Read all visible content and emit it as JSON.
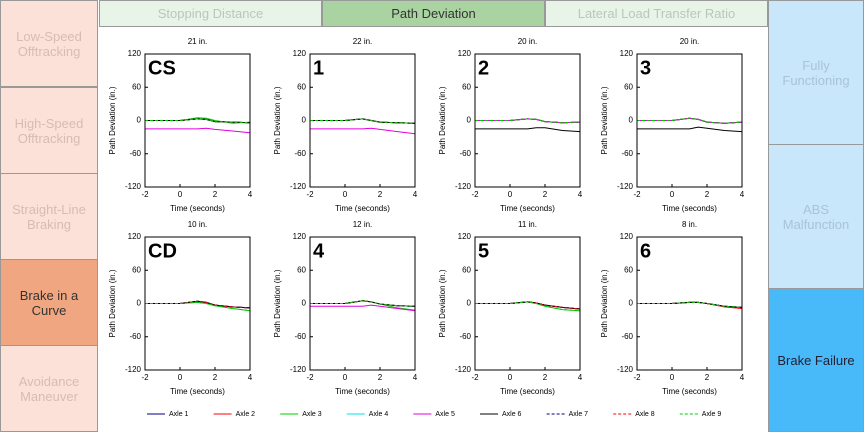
{
  "left_menu": [
    "Low-Speed Offtracking",
    "High-Speed Offtracking",
    "Straight-Line Braking",
    "Brake in a Curve",
    "Avoidance Maneuver"
  ],
  "tabs": [
    "Stopping Distance",
    "Path Deviation",
    "Lateral Load Transfer Ratio"
  ],
  "right_menu": [
    "Fully Functioning",
    "ABS Malfunction",
    "Brake Failure"
  ],
  "legend": [
    {
      "name": "Axle 1",
      "color": "#000080",
      "dash": false
    },
    {
      "name": "Axle 2",
      "color": "#ff0000",
      "dash": false
    },
    {
      "name": "Axle 3",
      "color": "#00cc00",
      "dash": false
    },
    {
      "name": "Axle 4",
      "color": "#00e0e0",
      "dash": false
    },
    {
      "name": "Axle 5",
      "color": "#e000e0",
      "dash": false
    },
    {
      "name": "Axle 6",
      "color": "#000000",
      "dash": false
    },
    {
      "name": "Axle 7",
      "color": "#000080",
      "dash": true
    },
    {
      "name": "Axle 8",
      "color": "#ff0000",
      "dash": true
    },
    {
      "name": "Axle 9",
      "color": "#00cc00",
      "dash": true
    }
  ],
  "chart_data": [
    {
      "type": "line",
      "title": "21 in.",
      "label": "CS",
      "x_label": "Time (seconds)",
      "y_label": "Path Deviation (in.)",
      "xlim": [
        -2,
        4
      ],
      "ylim": [
        -120,
        120
      ],
      "xticks": [
        -2,
        0,
        2,
        4
      ],
      "yticks": [
        -120,
        -60,
        0,
        60,
        120
      ],
      "x": [
        -2,
        0,
        1,
        1.5,
        2,
        3,
        4
      ],
      "series": [
        {
          "values": [
            0,
            0,
            3,
            2,
            -2,
            -3,
            -4
          ]
        },
        {
          "values": [
            0,
            0,
            3,
            2,
            -2,
            -3,
            -4
          ]
        },
        {
          "values": [
            0,
            0,
            5,
            4,
            0,
            -5,
            -3
          ]
        },
        {
          "values": [
            0,
            0,
            3,
            2,
            -2,
            -3,
            -4
          ]
        },
        {
          "values": [
            -15,
            -15,
            -15,
            -14,
            -16,
            -19,
            -22
          ]
        },
        {
          "values": [
            0,
            0,
            3,
            2,
            -2,
            -3,
            -4
          ]
        },
        {
          "values": [
            0,
            0,
            3,
            2,
            -2,
            -3,
            -4
          ]
        },
        {
          "values": [
            0,
            0,
            3,
            2,
            -2,
            -3,
            -4
          ]
        },
        {
          "values": [
            0,
            0,
            3,
            2,
            -2,
            -3,
            -4
          ]
        }
      ]
    },
    {
      "type": "line",
      "title": "22 in.",
      "label": "1",
      "x_label": "Time (seconds)",
      "y_label": "Path Deviation (in.)",
      "xlim": [
        -2,
        4
      ],
      "ylim": [
        -120,
        120
      ],
      "xticks": [
        -2,
        0,
        2,
        4
      ],
      "yticks": [
        -120,
        -60,
        0,
        60,
        120
      ],
      "x": [
        -2,
        0,
        1,
        1.5,
        2,
        3,
        4
      ],
      "series": [
        {
          "values": [
            0,
            0,
            3,
            0,
            -3,
            -4,
            -5
          ]
        },
        {
          "values": [
            0,
            0,
            3,
            0,
            -3,
            -4,
            -5
          ]
        },
        {
          "values": [
            0,
            0,
            3,
            0,
            -3,
            -4,
            -5
          ]
        },
        {
          "values": [
            0,
            0,
            3,
            0,
            -3,
            -4,
            -5
          ]
        },
        {
          "values": [
            -15,
            -15,
            -15,
            -14,
            -16,
            -20,
            -24
          ]
        },
        {
          "values": [
            0,
            0,
            3,
            0,
            -3,
            -4,
            -5
          ]
        },
        {
          "values": [
            0,
            0,
            3,
            0,
            -3,
            -4,
            -5
          ]
        },
        {
          "values": [
            0,
            0,
            3,
            0,
            -3,
            -4,
            -5
          ]
        },
        {
          "values": [
            0,
            0,
            3,
            0,
            -3,
            -4,
            -5
          ]
        }
      ]
    },
    {
      "type": "line",
      "title": "20 in.",
      "label": "2",
      "x_label": "Time (seconds)",
      "y_label": "Path Deviation (in.)",
      "xlim": [
        -2,
        4
      ],
      "ylim": [
        -120,
        120
      ],
      "xticks": [
        -2,
        0,
        2,
        4
      ],
      "yticks": [
        -120,
        -60,
        0,
        60,
        120
      ],
      "x": [
        -2,
        0,
        1,
        1.5,
        2,
        3,
        4
      ],
      "series": [
        {
          "values": [
            0,
            0,
            3,
            2,
            -2,
            -4,
            -3
          ]
        },
        {
          "values": [
            0,
            0,
            3,
            2,
            -2,
            -4,
            -3
          ]
        },
        {
          "values": [
            0,
            0,
            3,
            2,
            -2,
            -4,
            -3
          ]
        },
        {
          "values": [
            0,
            0,
            3,
            2,
            -2,
            -4,
            -3
          ]
        },
        {
          "values": [
            0,
            0,
            3,
            2,
            -2,
            -4,
            -3
          ]
        },
        {
          "values": [
            -15,
            -15,
            -15,
            -13,
            -13,
            -18,
            -20
          ]
        },
        {
          "values": [
            0,
            0,
            3,
            2,
            -2,
            -4,
            -3
          ]
        },
        {
          "values": [
            0,
            0,
            3,
            2,
            -2,
            -4,
            -3
          ]
        },
        {
          "values": [
            0,
            0,
            3,
            2,
            -2,
            -4,
            -3
          ]
        }
      ]
    },
    {
      "type": "line",
      "title": "20 in.",
      "label": "3",
      "x_label": "Time (seconds)",
      "y_label": "Path Deviation (in.)",
      "xlim": [
        -2,
        4
      ],
      "ylim": [
        -120,
        120
      ],
      "xticks": [
        -2,
        0,
        2,
        4
      ],
      "yticks": [
        -120,
        -60,
        0,
        60,
        120
      ],
      "x": [
        -2,
        0,
        1,
        1.5,
        2,
        3,
        4
      ],
      "series": [
        {
          "values": [
            0,
            0,
            4,
            2,
            -3,
            -5,
            -3
          ]
        },
        {
          "values": [
            0,
            0,
            4,
            2,
            -3,
            -5,
            -3
          ]
        },
        {
          "values": [
            0,
            0,
            4,
            2,
            -3,
            -5,
            -3
          ]
        },
        {
          "values": [
            0,
            0,
            4,
            2,
            -3,
            -5,
            -3
          ]
        },
        {
          "values": [
            0,
            0,
            4,
            2,
            -3,
            -5,
            -3
          ]
        },
        {
          "values": [
            -15,
            -15,
            -15,
            -12,
            -14,
            -18,
            -20
          ]
        },
        {
          "values": [
            0,
            0,
            4,
            2,
            -3,
            -5,
            -3
          ]
        },
        {
          "values": [
            0,
            0,
            4,
            2,
            -3,
            -5,
            -3
          ]
        },
        {
          "values": [
            0,
            0,
            4,
            2,
            -3,
            -5,
            -3
          ]
        }
      ]
    },
    {
      "type": "line",
      "title": "10 in.",
      "label": "CD",
      "x_label": "Time (seconds)",
      "y_label": "Path Deviation (in.)",
      "xlim": [
        -2,
        4
      ],
      "ylim": [
        -120,
        120
      ],
      "xticks": [
        -2,
        0,
        2,
        4
      ],
      "yticks": [
        -120,
        -60,
        0,
        60,
        120
      ],
      "x": [
        -2,
        0,
        1,
        1.5,
        2,
        3,
        4
      ],
      "series": [
        {
          "values": [
            0,
            0,
            4,
            2,
            -3,
            -6,
            -8
          ]
        },
        {
          "values": [
            0,
            0,
            4,
            2,
            -3,
            -6,
            -8
          ]
        },
        {
          "values": [
            0,
            0,
            2,
            0,
            -4,
            -9,
            -13
          ]
        },
        {
          "values": [
            0,
            0,
            4,
            2,
            -3,
            -6,
            -8
          ]
        },
        {
          "values": [
            0,
            0,
            4,
            2,
            -3,
            -6,
            -8
          ]
        },
        {
          "values": [
            0,
            0,
            4,
            2,
            -3,
            -6,
            -8
          ]
        },
        {
          "values": [
            0,
            0,
            4,
            2,
            -3,
            -6,
            -8
          ]
        },
        {
          "values": [
            0,
            0,
            4,
            2,
            -3,
            -6,
            -8
          ]
        },
        {
          "values": [
            0,
            0,
            2,
            0,
            -4,
            -9,
            -13
          ]
        }
      ]
    },
    {
      "type": "line",
      "title": "12 in.",
      "label": "4",
      "x_label": "Time (seconds)",
      "y_label": "Path Deviation (in.)",
      "xlim": [
        -2,
        4
      ],
      "ylim": [
        -120,
        120
      ],
      "xticks": [
        -2,
        0,
        2,
        4
      ],
      "yticks": [
        -120,
        -60,
        0,
        60,
        120
      ],
      "x": [
        -2,
        0,
        1,
        1.5,
        2,
        3,
        4
      ],
      "series": [
        {
          "values": [
            0,
            0,
            5,
            3,
            -1,
            -4,
            -5
          ]
        },
        {
          "values": [
            0,
            0,
            5,
            3,
            -1,
            -4,
            -5
          ]
        },
        {
          "values": [
            0,
            0,
            5,
            3,
            -1,
            -8,
            -12
          ]
        },
        {
          "values": [
            0,
            0,
            5,
            3,
            -1,
            -4,
            -5
          ]
        },
        {
          "values": [
            -5,
            -5,
            -5,
            -3,
            -5,
            -9,
            -13
          ]
        },
        {
          "values": [
            0,
            0,
            5,
            3,
            -1,
            -4,
            -5
          ]
        },
        {
          "values": [
            0,
            0,
            5,
            3,
            -1,
            -4,
            -5
          ]
        },
        {
          "values": [
            0,
            0,
            5,
            3,
            -1,
            -4,
            -5
          ]
        },
        {
          "values": [
            0,
            0,
            5,
            3,
            -1,
            -4,
            -5
          ]
        }
      ]
    },
    {
      "type": "line",
      "title": "11 in.",
      "label": "5",
      "x_label": "Time (seconds)",
      "y_label": "Path Deviation (in.)",
      "xlim": [
        -2,
        4
      ],
      "ylim": [
        -120,
        120
      ],
      "xticks": [
        -2,
        0,
        2,
        4
      ],
      "yticks": [
        -120,
        -60,
        0,
        60,
        120
      ],
      "x": [
        -2,
        0,
        1,
        1.5,
        2,
        3,
        4
      ],
      "series": [
        {
          "values": [
            0,
            0,
            3,
            1,
            -3,
            -7,
            -10
          ]
        },
        {
          "values": [
            0,
            0,
            3,
            1,
            -3,
            -7,
            -10
          ]
        },
        {
          "values": [
            0,
            0,
            3,
            0,
            -5,
            -11,
            -13
          ]
        },
        {
          "values": [
            0,
            0,
            3,
            1,
            -3,
            -7,
            -10
          ]
        },
        {
          "values": [
            0,
            0,
            3,
            1,
            -3,
            -7,
            -10
          ]
        },
        {
          "values": [
            0,
            0,
            3,
            1,
            -3,
            -7,
            -10
          ]
        },
        {
          "values": [
            0,
            0,
            3,
            1,
            -3,
            -7,
            -10
          ]
        },
        {
          "values": [
            0,
            0,
            3,
            1,
            -3,
            -7,
            -10
          ]
        },
        {
          "values": [
            0,
            0,
            3,
            0,
            -5,
            -11,
            -13
          ]
        }
      ]
    },
    {
      "type": "line",
      "title": "8 in.",
      "label": "6",
      "x_label": "Time (seconds)",
      "y_label": "Path Deviation (in.)",
      "xlim": [
        -2,
        4
      ],
      "ylim": [
        -120,
        120
      ],
      "xticks": [
        -2,
        0,
        2,
        4
      ],
      "yticks": [
        -120,
        -60,
        0,
        60,
        120
      ],
      "x": [
        -2,
        0,
        1,
        1.5,
        2,
        3,
        4
      ],
      "series": [
        {
          "values": [
            0,
            0,
            2,
            2,
            0,
            -5,
            -7
          ]
        },
        {
          "values": [
            0,
            0,
            2,
            2,
            0,
            -6,
            -9
          ]
        },
        {
          "values": [
            0,
            0,
            2,
            2,
            0,
            -5,
            -7
          ]
        },
        {
          "values": [
            0,
            0,
            2,
            2,
            0,
            -5,
            -7
          ]
        },
        {
          "values": [
            0,
            0,
            2,
            2,
            0,
            -5,
            -7
          ]
        },
        {
          "values": [
            0,
            0,
            2,
            2,
            0,
            -5,
            -7
          ]
        },
        {
          "values": [
            0,
            0,
            2,
            2,
            0,
            -5,
            -7
          ]
        },
        {
          "values": [
            0,
            0,
            2,
            2,
            0,
            -6,
            -9
          ]
        },
        {
          "values": [
            0,
            0,
            2,
            2,
            0,
            -5,
            -7
          ]
        }
      ]
    }
  ]
}
